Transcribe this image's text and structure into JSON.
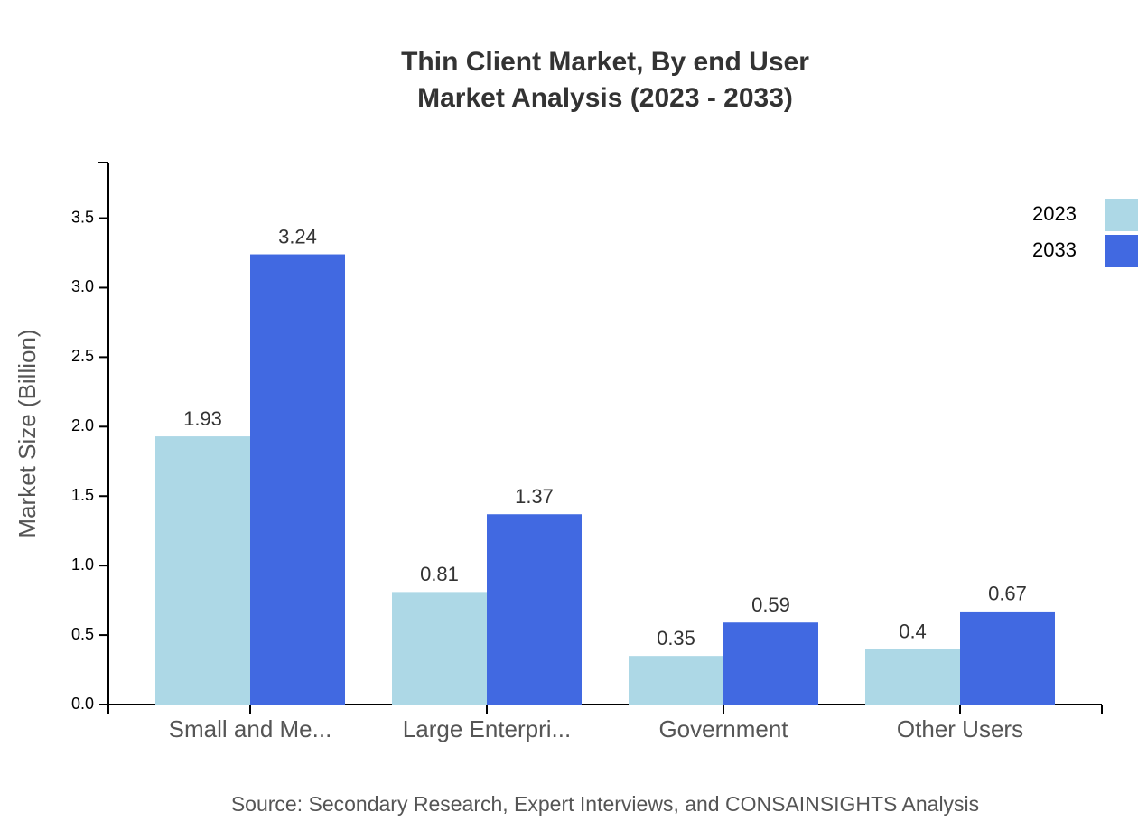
{
  "chart_data": {
    "type": "bar",
    "title": [
      "Thin Client Market, By end User",
      "Market Analysis (2023 - 2033)"
    ],
    "y_label": "Market Size (Billion)",
    "source": "Source: Secondary Research, Expert Interviews, and CONSAINSIGHTS Analysis",
    "categories": [
      "Small and Me...",
      "Large Enterpri...",
      "Government",
      "Other Users"
    ],
    "series": [
      {
        "name": "2023",
        "color": "#add8e6",
        "values": [
          1.93,
          0.81,
          0.35,
          0.4
        ]
      },
      {
        "name": "2033",
        "color": "#4169e1",
        "values": [
          3.24,
          1.37,
          0.59,
          0.67
        ]
      }
    ],
    "ylim": [
      0,
      3.9
    ],
    "yticks": [
      {
        "value": 0,
        "label": "0.0"
      },
      0.5,
      {
        "value": 1,
        "label": "1.0"
      },
      1.5,
      {
        "value": 2,
        "label": "2.0"
      },
      2.5,
      {
        "value": 3,
        "label": "3.0"
      },
      3.5
    ],
    "legend": "top-right"
  }
}
